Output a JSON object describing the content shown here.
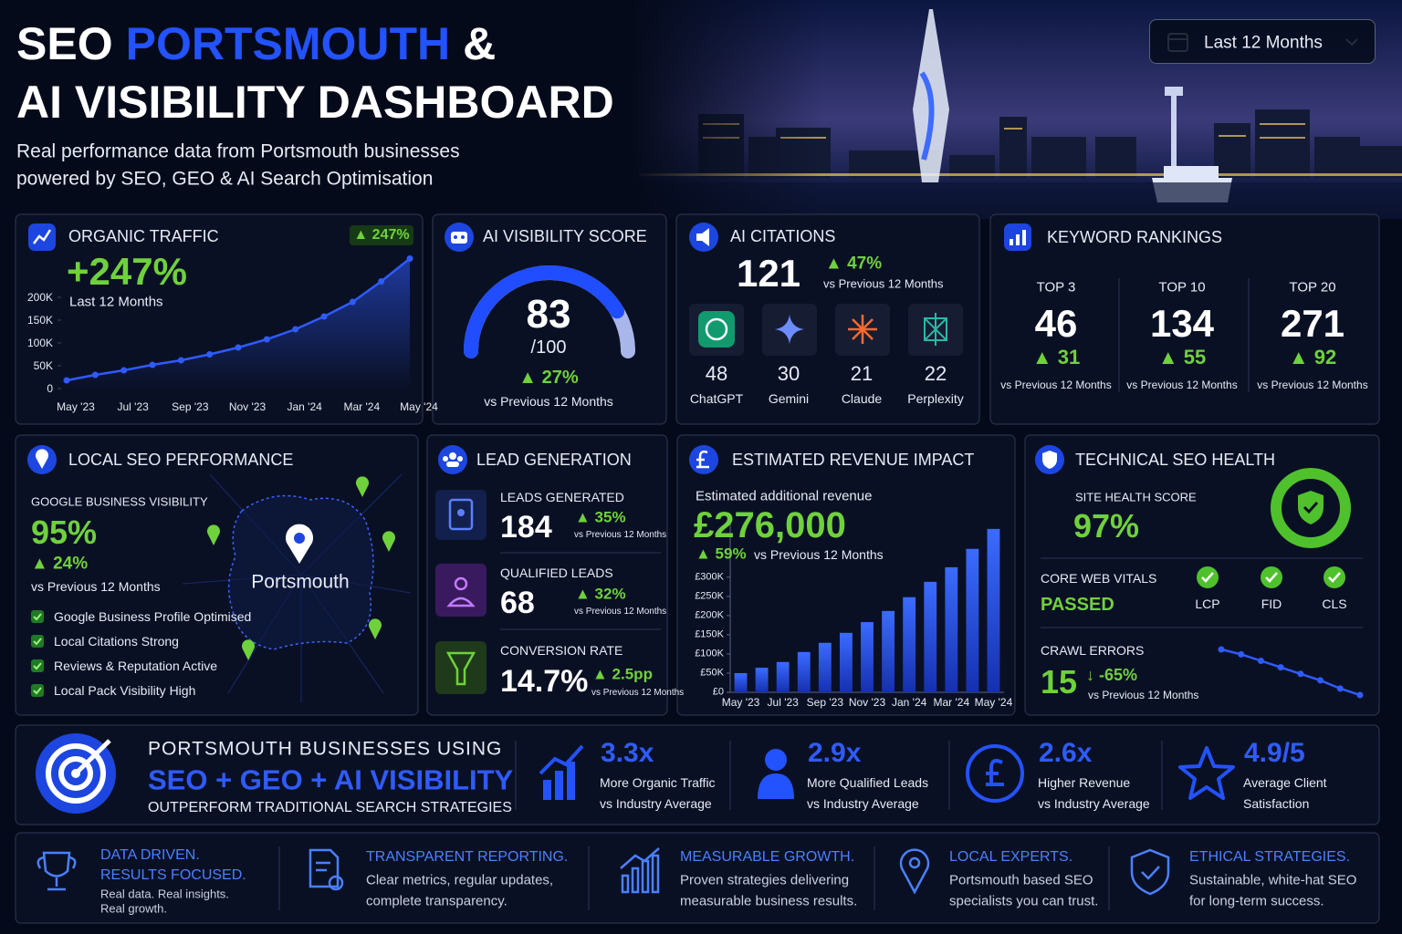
{
  "header": {
    "title_part1": "SEO",
    "title_highlight": "PORTSMOUTH",
    "title_part2": "&",
    "title_line2": "AI VISIBILITY DASHBOARD",
    "subtitle_line1": "Real performance data from Portsmouth businesses",
    "subtitle_line2": "powered by SEO, GEO & AI Search Optimisation",
    "date_filter": "Last 12 Months"
  },
  "organic_traffic": {
    "title": "ORGANIC TRAFFIC",
    "badge": "▲ 247%",
    "value": "+247%",
    "period": "Last 12 Months",
    "chart": {
      "type": "line",
      "color": "#2f5bff",
      "categories": [
        "May '23",
        null,
        "Jul '23",
        null,
        "Sep '23",
        null,
        "Nov '23",
        null,
        "Jan '24",
        null,
        "Mar '24",
        null,
        "May '24"
      ],
      "values": [
        18000,
        30000,
        40000,
        52000,
        62000,
        75000,
        90000,
        108000,
        130000,
        158000,
        190000,
        235000,
        285000
      ],
      "ylim": [
        0,
        290000
      ],
      "yticks": [
        0,
        {
          "value": 50000,
          "label": "50K"
        },
        {
          "value": 100000,
          "label": "100K"
        },
        {
          "value": 150000,
          "label": "150K"
        },
        {
          "value": 200000,
          "label": "200K"
        }
      ]
    }
  },
  "ai_visibility": {
    "title": "AI VISIBILITY SCORE",
    "score": 83,
    "score_max": {
      "value": 100,
      "label": "/100"
    },
    "change": "▲ 27%",
    "change_note": "vs Previous 12 Months"
  },
  "ai_citations": {
    "title": "AI CITATIONS",
    "total": 121,
    "change": "▲ 47%",
    "change_note": "vs Previous 12 Months",
    "platforms": [
      {
        "count": 48,
        "name": "ChatGPT"
      },
      {
        "count": 30,
        "name": "Gemini"
      },
      {
        "count": 21,
        "name": "Claude"
      },
      {
        "count": 22,
        "name": "Perplexity"
      }
    ]
  },
  "keyword_rankings": {
    "title": "KEYWORD RANKINGS",
    "columns": [
      {
        "label": "TOP 3",
        "value": 46,
        "change": "▲ 31",
        "note": "vs Previous 12 Months"
      },
      {
        "label": "TOP 10",
        "value": 134,
        "change": "▲ 55",
        "note": "vs Previous 12 Months"
      },
      {
        "label": "TOP 20",
        "value": 271,
        "change": "▲ 92",
        "note": "vs Previous 12 Months"
      }
    ]
  },
  "local_seo": {
    "title": "LOCAL SEO PERFORMANCE",
    "metric_label": "GOOGLE BUSINESS VISIBILITY",
    "value": "95%",
    "change": "▲ 24%",
    "note": "vs Previous 12 Months",
    "map_label": "Portsmouth",
    "checklist": [
      "Google Business Profile Optimised",
      "Local Citations Strong",
      "Reviews & Reputation Active",
      "Local Pack Visibility High"
    ]
  },
  "lead_generation": {
    "title": "LEAD GENERATION",
    "metrics": [
      {
        "label": "LEADS GENERATED",
        "value": "184",
        "change": "▲ 35%",
        "note": "vs Previous 12 Months"
      },
      {
        "label": "QUALIFIED LEADS",
        "value": "68",
        "change": "▲ 32%",
        "note": "vs Previous 12 Months"
      },
      {
        "label": "CONVERSION RATE",
        "value": "14.7%",
        "change": "▲ 2.5pp",
        "note": "vs Previous 12 Months"
      }
    ]
  },
  "revenue": {
    "title": "ESTIMATED REVENUE IMPACT",
    "label": "Estimated additional revenue",
    "value": "£276,000",
    "change": "▲ 59%",
    "note": "vs Previous 12 Months",
    "chart": {
      "type": "bar",
      "color": "#2f5bff",
      "categories": [
        "May '23",
        null,
        "Jul '23",
        null,
        "Sep '23",
        null,
        "Nov '23",
        null,
        "Jan '24",
        null,
        "Mar '24",
        null,
        "May '24"
      ],
      "values": [
        50000,
        64000,
        79000,
        105000,
        129000,
        155000,
        183000,
        212000,
        248000,
        288000,
        326000,
        374000,
        426000
      ],
      "ylim": [
        0,
        440000
      ],
      "yticks": [
        {
          "value": 0,
          "label": "£0"
        },
        {
          "value": 50000,
          "label": "£50K"
        },
        {
          "value": 100000,
          "label": "£100K"
        },
        {
          "value": 150000,
          "label": "£150K"
        },
        {
          "value": 200000,
          "label": "£200K"
        },
        {
          "value": 250000,
          "label": "£250K"
        },
        {
          "value": 300000,
          "label": "£300K"
        }
      ]
    }
  },
  "technical_seo": {
    "title": "TECHNICAL SEO HEALTH",
    "site_health_label": "SITE HEALTH SCORE",
    "site_health_value": "97%",
    "cwv_label": "CORE WEB VITALS",
    "cwv_status": "PASSED",
    "vitals": [
      "LCP",
      "FID",
      "CLS"
    ],
    "crawl_label": "CRAWL ERRORS",
    "crawl_value": 15,
    "crawl_change": "↓ -65%",
    "crawl_note": "vs Previous 12 Months",
    "crawl_trend": {
      "type": "line",
      "color": "#2f5bff",
      "values": [
        43,
        40,
        36,
        32,
        28,
        24,
        19,
        15
      ]
    }
  },
  "banner": {
    "line1": "PORTSMOUTH BUSINESSES USING",
    "line2": "SEO + GEO + AI VISIBILITY",
    "line3": "OUTPERFORM TRADITIONAL SEARCH STRATEGIES",
    "stats": [
      {
        "value": "3.3x",
        "line1": "More Organic Traffic",
        "line2": "vs Industry Average"
      },
      {
        "value": "2.9x",
        "line1": "More Qualified Leads",
        "line2": "vs Industry Average"
      },
      {
        "value": "2.6x",
        "line1": "Higher Revenue",
        "line2": "vs Industry Average"
      },
      {
        "value": "4.9/5",
        "line1": "Average Client",
        "line2": "Satisfaction"
      }
    ]
  },
  "footer": {
    "items": [
      {
        "title": [
          "DATA DRIVEN.",
          "RESULTS FOCUSED."
        ],
        "text": [
          "Real data. Real insights.",
          "Real growth."
        ]
      },
      {
        "title": [
          "TRANSPARENT REPORTING."
        ],
        "text": [
          "Clear metrics, regular updates,",
          "complete transparency."
        ]
      },
      {
        "title": [
          "MEASURABLE GROWTH."
        ],
        "text": [
          "Proven strategies delivering",
          "measurable business results."
        ]
      },
      {
        "title": [
          "LOCAL EXPERTS."
        ],
        "text": [
          "Portsmouth based SEO",
          "specialists you can trust."
        ]
      },
      {
        "title": [
          "ETHICAL STRATEGIES."
        ],
        "text": [
          "Sustainable, white-hat SEO",
          "for long-term success."
        ]
      }
    ]
  }
}
